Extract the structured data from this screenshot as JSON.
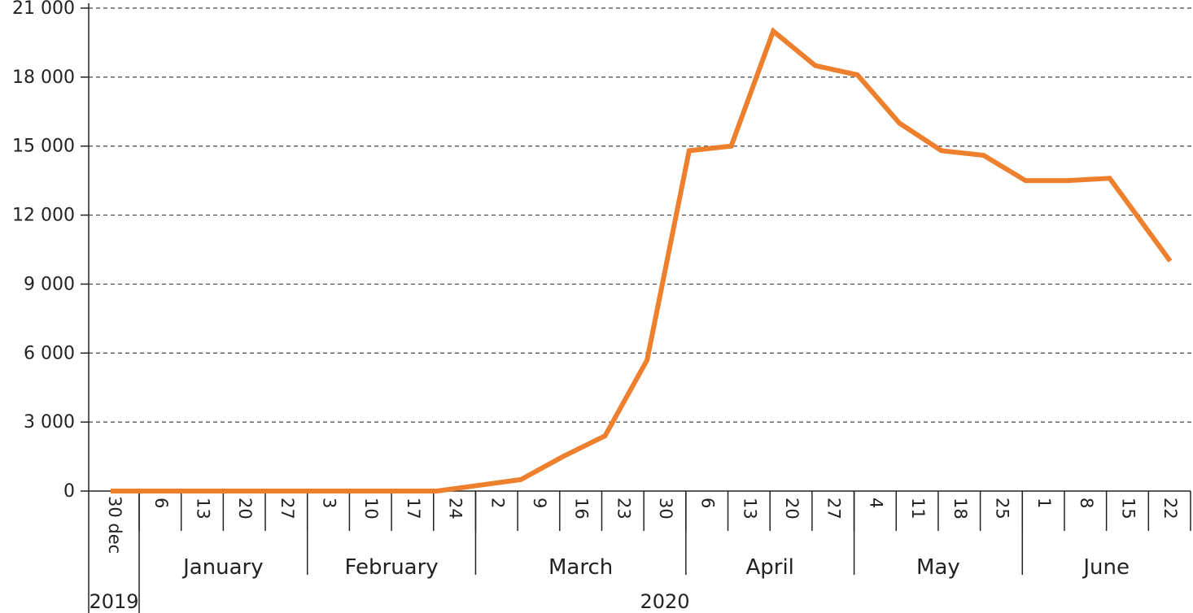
{
  "chart_data": {
    "type": "line",
    "ylim": [
      0,
      21000
    ],
    "yticks": [
      "0",
      "3 000",
      "6 000",
      "9 000",
      "12 000",
      "15 000",
      "18 000",
      "21 000"
    ],
    "ytick_values": [
      0,
      3000,
      6000,
      9000,
      12000,
      15000,
      18000,
      21000
    ],
    "grid": true,
    "x": [
      "30 dec",
      "6",
      "13",
      "20",
      "27",
      "3",
      "10",
      "17",
      "24",
      "2",
      "9",
      "16",
      "23",
      "30",
      "6",
      "13",
      "20",
      "27",
      "4",
      "11",
      "18",
      "25",
      "1",
      "8",
      "15",
      "22"
    ],
    "series": [
      {
        "color": "#ee7f2d",
        "values": [
          0,
          0,
          0,
          0,
          0,
          0,
          0,
          0,
          0,
          250,
          500,
          1500,
          2400,
          5700,
          14800,
          15000,
          20000,
          18500,
          18100,
          16000,
          14800,
          14600,
          13500,
          13500,
          13600,
          10000
        ]
      }
    ],
    "months": [
      {
        "label": "January",
        "start": 1,
        "end": 4
      },
      {
        "label": "February",
        "start": 5,
        "end": 8
      },
      {
        "label": "March",
        "start": 9,
        "end": 13
      },
      {
        "label": "April",
        "start": 14,
        "end": 17
      },
      {
        "label": "May",
        "start": 18,
        "end": 21
      },
      {
        "label": "June",
        "start": 22,
        "end": 25
      }
    ],
    "years": [
      {
        "label": "2019",
        "start": 0,
        "end": 0
      },
      {
        "label": "2020",
        "start": 1,
        "end": 25
      }
    ]
  }
}
